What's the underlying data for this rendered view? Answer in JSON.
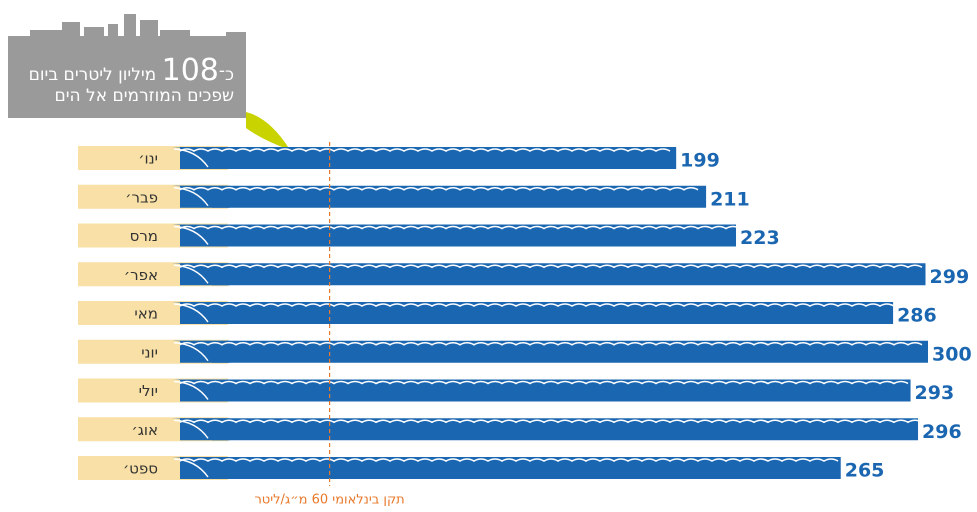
{
  "chart_data": {
    "type": "bar",
    "orientation": "horizontal",
    "categories": [
      "ינו׳",
      "פבר׳",
      "מרס",
      "אפר׳",
      "מאי",
      "יוני",
      "יולי",
      "אוג׳",
      "ספט׳"
    ],
    "values": [
      199,
      211,
      223,
      299,
      286,
      300,
      293,
      296,
      265
    ],
    "color": "#1b66b1",
    "label_color": "#f8e0a6",
    "xlim": [
      0,
      300
    ],
    "reference": {
      "value": 60,
      "label": "תקן בינלאומי 60 מ״ג/ליטר",
      "color": "#e8782a"
    },
    "callout": {
      "prefix": "כ־",
      "number": 108,
      "line1": "מיליון ליטרים ביום",
      "line2": "שפכים המוזרמים אל הים"
    }
  }
}
